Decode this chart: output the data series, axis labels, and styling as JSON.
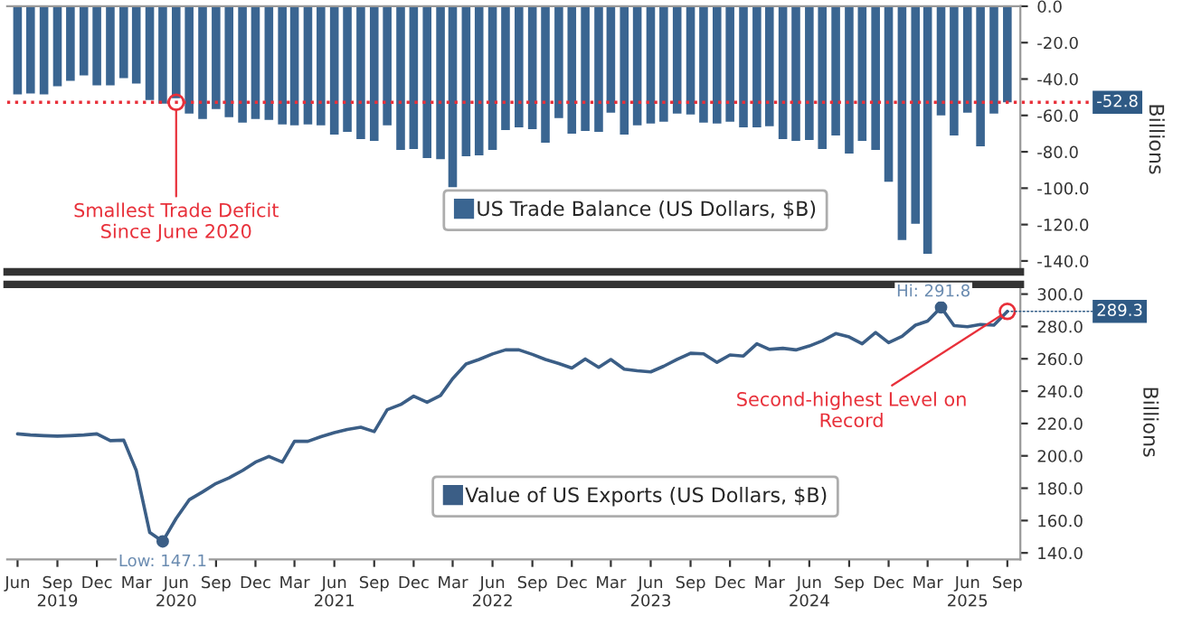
{
  "chart_data": [
    {
      "type": "bar",
      "ylabel": "Billions",
      "legend": "bottom",
      "tick_labels": "y",
      "x": [
        "2019-06",
        "2019-07",
        "2019-08",
        "2019-09",
        "2019-10",
        "2019-11",
        "2019-12",
        "2020-01",
        "2020-02",
        "2020-03",
        "2020-04",
        "2020-05",
        "2020-06",
        "2020-07",
        "2020-08",
        "2020-09",
        "2020-10",
        "2020-11",
        "2020-12",
        "2021-01",
        "2021-02",
        "2021-03",
        "2021-04",
        "2021-05",
        "2021-06",
        "2021-07",
        "2021-08",
        "2021-09",
        "2021-10",
        "2021-11",
        "2021-12",
        "2022-01",
        "2022-02",
        "2022-03",
        "2022-04",
        "2022-05",
        "2022-06",
        "2022-07",
        "2022-08",
        "2022-09",
        "2022-10",
        "2022-11",
        "2022-12",
        "2023-01",
        "2023-02",
        "2023-03",
        "2023-04",
        "2023-05",
        "2023-06",
        "2023-07",
        "2023-08",
        "2023-09",
        "2023-10",
        "2023-11",
        "2023-12",
        "2024-01",
        "2024-02",
        "2024-03",
        "2024-04",
        "2024-05",
        "2024-06",
        "2024-07",
        "2024-08",
        "2024-09",
        "2024-10",
        "2024-11",
        "2024-12",
        "2025-01",
        "2025-02",
        "2025-03",
        "2025-04",
        "2025-05",
        "2025-06",
        "2025-07",
        "2025-08",
        "2025-09"
      ],
      "series": [
        {
          "name": "US Trade Balance (US Dollars, $B)",
          "color": "#3a6591",
          "values": [
            -48.5,
            -48,
            -48.5,
            -44,
            -41,
            -38,
            -43.5,
            -43.5,
            -39.5,
            -42.5,
            -51.5,
            -53.5,
            -50.5,
            -59,
            -62,
            -56.5,
            -61,
            -64,
            -62,
            -62.5,
            -65,
            -65.5,
            -65,
            -65.5,
            -70.5,
            -69,
            -73,
            -74,
            -65.5,
            -79,
            -78.5,
            -83.5,
            -84,
            -99.5,
            -82.5,
            -82,
            -79,
            -68,
            -66.5,
            -67.5,
            -75,
            -61.5,
            -70,
            -68.5,
            -69,
            -58.5,
            -70.5,
            -65.5,
            -64.5,
            -63.5,
            -59,
            -59.5,
            -64,
            -64.5,
            -63.5,
            -66.5,
            -66.5,
            -66,
            -73,
            -74,
            -73.5,
            -78.5,
            -71,
            -81,
            -74,
            -79,
            -96.5,
            -128.5,
            -119.5,
            -136,
            -60,
            -71,
            -58.5,
            -77,
            -59,
            -52.8
          ]
        }
      ],
      "xlim": [
        "2019-05-08",
        "2025-10-01"
      ],
      "ylim": [
        -146,
        0
      ],
      "yticks": [
        {
          "value": 0,
          "label": "0.0"
        },
        {
          "value": -20,
          "label": "-20.0"
        },
        {
          "value": -40,
          "label": "-40.0"
        },
        {
          "value": -60,
          "label": "-60.0"
        },
        {
          "value": -80,
          "label": "-80.0"
        },
        {
          "value": -100,
          "label": "-100.0"
        },
        {
          "value": -120,
          "label": "-120.0"
        },
        {
          "value": -140,
          "label": "-140.0"
        }
      ],
      "ref_lines": [
        {
          "axis": "y",
          "value": -52.8,
          "label": "-52.8",
          "color": "#e8303a",
          "line_style": "dotted"
        }
      ],
      "annotations": [
        {
          "text": "Smallest Trade Deficit Since June 2020",
          "x": "2020-06",
          "y": -52.8
        }
      ]
    },
    {
      "type": "line",
      "ylabel": "Billions",
      "legend": "bottom",
      "marker": "none",
      "line_style": "solid",
      "x": [
        "2019-06",
        "2019-07",
        "2019-08",
        "2019-09",
        "2019-10",
        "2019-11",
        "2019-12",
        "2020-01",
        "2020-02",
        "2020-03",
        "2020-04",
        "2020-05",
        "2020-06",
        "2020-07",
        "2020-08",
        "2020-09",
        "2020-10",
        "2020-11",
        "2020-12",
        "2021-01",
        "2021-02",
        "2021-03",
        "2021-04",
        "2021-05",
        "2021-06",
        "2021-07",
        "2021-08",
        "2021-09",
        "2021-10",
        "2021-11",
        "2021-12",
        "2022-01",
        "2022-02",
        "2022-03",
        "2022-04",
        "2022-05",
        "2022-06",
        "2022-07",
        "2022-08",
        "2022-09",
        "2022-10",
        "2022-11",
        "2022-12",
        "2023-01",
        "2023-02",
        "2023-03",
        "2023-04",
        "2023-05",
        "2023-06",
        "2023-07",
        "2023-08",
        "2023-09",
        "2023-10",
        "2023-11",
        "2023-12",
        "2024-01",
        "2024-02",
        "2024-03",
        "2024-04",
        "2024-05",
        "2024-06",
        "2024-07",
        "2024-08",
        "2024-09",
        "2024-10",
        "2024-11",
        "2024-12",
        "2025-01",
        "2025-02",
        "2025-03",
        "2025-04",
        "2025-05",
        "2025-06",
        "2025-07",
        "2025-08",
        "2025-09"
      ],
      "series": [
        {
          "name": "Value of US Exports (US Dollars, $B)",
          "color": "#3b5e86",
          "values": [
            213.6,
            212.9,
            212.5,
            212.2,
            212.5,
            212.9,
            213.6,
            209.4,
            209.7,
            190.9,
            152.6,
            147.1,
            161.3,
            172.8,
            177.7,
            182.9,
            186.4,
            190.9,
            196.1,
            199.6,
            196.1,
            209,
            209,
            211.8,
            214.3,
            216.3,
            217.7,
            215,
            228.5,
            231.7,
            236.9,
            233.1,
            237.3,
            247.7,
            256.8,
            259.6,
            263,
            265.5,
            265.5,
            262.7,
            259.6,
            257.1,
            254.3,
            259.9,
            254.7,
            259.6,
            253.6,
            252.6,
            251.9,
            255.4,
            259.6,
            263.4,
            263.1,
            257.8,
            262.4,
            261.7,
            269.3,
            265.8,
            266.5,
            265.5,
            267.9,
            271.1,
            275.6,
            273.5,
            269.3,
            276.3,
            270,
            273.9,
            280.8,
            283.3,
            291.8,
            280.5,
            279.8,
            281.2,
            280.8,
            289.3
          ]
        }
      ],
      "xlim": [
        "2019-05-08",
        "2025-10-01"
      ],
      "xticks": [
        {
          "value": "2019-06",
          "label": "Jun"
        },
        {
          "value": "2019-09",
          "label": "Sep\n2019"
        },
        {
          "value": "2019-12",
          "label": "Dec"
        },
        {
          "value": "2020-03",
          "label": "Mar"
        },
        {
          "value": "2020-06",
          "label": "Jun\n2020"
        },
        {
          "value": "2020-09",
          "label": "Sep"
        },
        {
          "value": "2020-12",
          "label": "Dec"
        },
        {
          "value": "2021-03",
          "label": "Mar"
        },
        {
          "value": "2021-06",
          "label": "Jun\n2021"
        },
        {
          "value": "2021-09",
          "label": "Sep"
        },
        {
          "value": "2021-12",
          "label": "Dec"
        },
        {
          "value": "2022-03",
          "label": "Mar"
        },
        {
          "value": "2022-06",
          "label": "Jun\n2022"
        },
        {
          "value": "2022-09",
          "label": "Sep"
        },
        {
          "value": "2022-12",
          "label": "Dec"
        },
        {
          "value": "2023-03",
          "label": "Mar"
        },
        {
          "value": "2023-06",
          "label": "Jun\n2023"
        },
        {
          "value": "2023-09",
          "label": "Sep"
        },
        {
          "value": "2023-12",
          "label": "Dec"
        },
        {
          "value": "2024-03",
          "label": "Mar"
        },
        {
          "value": "2024-06",
          "label": "Jun\n2024"
        },
        {
          "value": "2024-09",
          "label": "Sep"
        },
        {
          "value": "2024-12",
          "label": "Dec"
        },
        {
          "value": "2025-03",
          "label": "Mar"
        },
        {
          "value": "2025-06",
          "label": "Jun\n2025"
        },
        {
          "value": "2025-09",
          "label": "Sep"
        }
      ],
      "ylim": [
        136,
        306
      ],
      "yticks": [
        {
          "value": 140,
          "label": "140.0"
        },
        {
          "value": 160,
          "label": "160.0"
        },
        {
          "value": 180,
          "label": "180.0"
        },
        {
          "value": 200,
          "label": "200.0"
        },
        {
          "value": 220,
          "label": "220.0"
        },
        {
          "value": 240,
          "label": "240.0"
        },
        {
          "value": 260,
          "label": "260.0"
        },
        {
          "value": 280,
          "label": "280.0"
        },
        {
          "value": 300,
          "label": "300.0"
        }
      ],
      "annotations": [
        {
          "text": "Low: 147.1",
          "x": "2020-05",
          "y": 147.1
        },
        {
          "text": "Hi: 291.8",
          "x": "2025-04",
          "y": 291.8
        },
        {
          "text": "Second-highest Level on Record",
          "x": "2025-09",
          "y": 289.3
        },
        {
          "text": "289.3",
          "x": "2025-09",
          "y": 289.3
        }
      ]
    }
  ]
}
